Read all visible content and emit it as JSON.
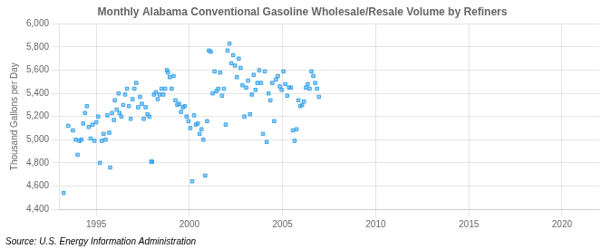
{
  "chart_data": {
    "type": "scatter",
    "title": "Monthly Alabama Conventional Gasoline Wholesale/Resale Volume by Refiners",
    "ylabel": "Thousand Gallons per Day",
    "annotations": [
      "Source: U.S. Energy Information Administration"
    ],
    "marker": "square",
    "grid": true,
    "xlim": [
      1993.0,
      2022.0
    ],
    "xticks": [
      1995,
      2000,
      2005,
      2010,
      2015,
      2020
    ],
    "ylim": [
      4400,
      6000
    ],
    "yticks": [
      {
        "value": 4400,
        "label": "4,400"
      },
      {
        "value": 4600,
        "label": "4,600"
      },
      {
        "value": 4800,
        "label": "4,800"
      },
      {
        "value": 5000,
        "label": "5,000"
      },
      {
        "value": 5200,
        "label": "5,200"
      },
      {
        "value": 5400,
        "label": "5,400"
      },
      {
        "value": 5600,
        "label": "5,600"
      },
      {
        "value": 5800,
        "label": "5,800"
      },
      {
        "value": 6000,
        "label": "6,000"
      }
    ],
    "x": [
      1993.25,
      1993.5,
      1993.75,
      1993.9,
      1994.0,
      1994.1,
      1994.2,
      1994.3,
      1994.4,
      1994.5,
      1994.6,
      1994.7,
      1994.8,
      1994.9,
      1995.0,
      1995.1,
      1995.2,
      1995.3,
      1995.4,
      1995.5,
      1995.6,
      1995.7,
      1995.75,
      1995.85,
      1995.95,
      1996.0,
      1996.1,
      1996.2,
      1996.25,
      1996.35,
      1996.45,
      1996.55,
      1996.65,
      1996.75,
      1996.85,
      1996.95,
      1997.05,
      1997.15,
      1997.25,
      1997.35,
      1997.45,
      1997.55,
      1997.65,
      1997.75,
      1997.85,
      1997.95,
      1998.0,
      1998.1,
      1998.2,
      1998.3,
      1998.4,
      1998.5,
      1998.6,
      1998.7,
      1998.8,
      1998.85,
      1998.95,
      1999.05,
      1999.15,
      1999.25,
      1999.35,
      1999.45,
      1999.55,
      1999.65,
      1999.75,
      1999.85,
      1999.95,
      2000.05,
      2000.15,
      2000.25,
      2000.35,
      2000.45,
      2000.55,
      2000.65,
      2000.75,
      2000.85,
      2000.95,
      2001.05,
      2001.15,
      2001.25,
      2001.35,
      2001.45,
      2001.55,
      2001.65,
      2001.75,
      2001.85,
      2001.95,
      2002.05,
      2002.15,
      2002.25,
      2002.35,
      2002.45,
      2002.55,
      2002.65,
      2002.75,
      2002.85,
      2002.95,
      2003.05,
      2003.15,
      2003.25,
      2003.35,
      2003.45,
      2003.55,
      2003.65,
      2003.75,
      2003.85,
      2003.95,
      2004.05,
      2004.15,
      2004.25,
      2004.35,
      2004.45,
      2004.55,
      2004.65,
      2004.75,
      2004.85,
      2004.95,
      2005.05,
      2005.15,
      2005.25,
      2005.35,
      2005.45,
      2005.55,
      2005.65,
      2005.75,
      2005.85,
      2005.95,
      2006.05,
      2006.15,
      2006.25,
      2006.35,
      2006.45,
      2006.55,
      2006.65,
      2006.75,
      2006.85,
      2006.95
    ],
    "values": [
      4540,
      5120,
      5080,
      5000,
      4870,
      4990,
      5000,
      5140,
      5230,
      5290,
      5110,
      5010,
      5130,
      4990,
      5150,
      5200,
      4800,
      4990,
      5050,
      5000,
      5210,
      5060,
      4760,
      5230,
      5170,
      5340,
      5260,
      5400,
      5230,
      5200,
      5300,
      5390,
      5440,
      5290,
      5180,
      5350,
      5440,
      5490,
      5280,
      5370,
      5310,
      5180,
      5280,
      5220,
      5200,
      4810,
      4810,
      5390,
      5410,
      5350,
      5390,
      5440,
      5390,
      5440,
      5600,
      5580,
      5540,
      5440,
      5550,
      5340,
      5300,
      5310,
      5240,
      5280,
      5290,
      5200,
      5160,
      5100,
      4640,
      5210,
      5130,
      5140,
      5050,
      5090,
      5000,
      4690,
      5160,
      5770,
      5760,
      5400,
      5590,
      5420,
      5440,
      5580,
      5380,
      5440,
      5130,
      5770,
      5830,
      5660,
      5730,
      5640,
      5540,
      5700,
      5620,
      5470,
      5200,
      5450,
      5510,
      5220,
      5390,
      5560,
      5430,
      5490,
      5600,
      5490,
      5050,
      5590,
      4980,
      5400,
      5340,
      5490,
      5160,
      5520,
      5550,
      5460,
      5430,
      5590,
      5480,
      5380,
      5450,
      5450,
      5080,
      4990,
      5090,
      5340,
      5290,
      5300,
      5330,
      5450,
      5480,
      5440,
      5590,
      5550,
      5490,
      5440,
      5370
    ]
  }
}
